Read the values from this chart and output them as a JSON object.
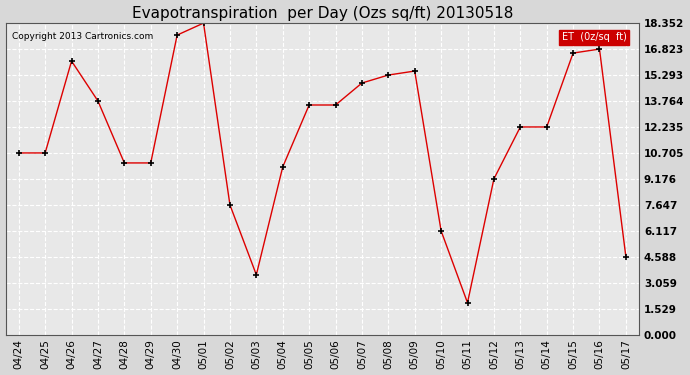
{
  "title": "Evapotranspiration  per Day (Ozs sq/ft) 20130518",
  "copyright": "Copyright 2013 Cartronics.com",
  "legend_label": "ET  (0z/sq  ft)",
  "x_labels": [
    "04/24",
    "04/25",
    "04/26",
    "04/27",
    "04/28",
    "04/29",
    "04/30",
    "05/01",
    "05/02",
    "05/03",
    "05/04",
    "05/05",
    "05/06",
    "05/07",
    "05/08",
    "05/09",
    "05/10",
    "05/11",
    "05/12",
    "05/13",
    "05/14",
    "05/15",
    "05/16",
    "05/17"
  ],
  "y_values": [
    10.705,
    10.705,
    16.117,
    13.764,
    10.117,
    10.117,
    17.647,
    18.352,
    7.647,
    3.529,
    9.882,
    13.529,
    13.529,
    14.823,
    15.293,
    15.529,
    6.117,
    1.882,
    9.176,
    12.235,
    12.235,
    16.588,
    16.823,
    4.588
  ],
  "y_ticks": [
    0.0,
    1.529,
    3.059,
    4.588,
    6.117,
    7.647,
    9.176,
    10.705,
    12.235,
    13.764,
    15.293,
    16.823,
    18.352
  ],
  "line_color": "#dd0000",
  "marker_color": "#000000",
  "bg_color": "#d8d8d8",
  "plot_bg_color": "#e8e8e8",
  "grid_color": "#ffffff",
  "legend_bg": "#cc0000",
  "legend_text_color": "#ffffff",
  "title_fontsize": 11,
  "tick_fontsize": 7.5,
  "ylim": [
    0,
    18.352
  ]
}
